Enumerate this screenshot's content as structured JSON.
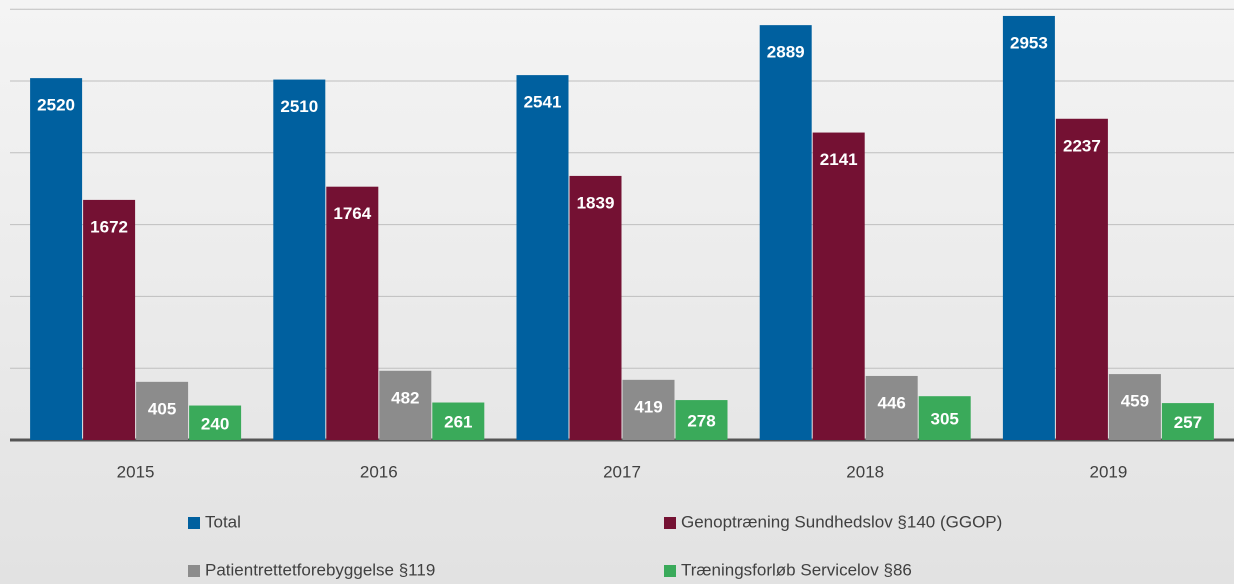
{
  "chart_data": {
    "type": "bar",
    "categories": [
      "2015",
      "2016",
      "2017",
      "2018",
      "2019"
    ],
    "series": [
      {
        "name": "Total",
        "color": "#00609f",
        "values": [
          2520,
          2510,
          2541,
          2889,
          2953
        ]
      },
      {
        "name": "Genoptræning Sundhedslov §140 (GGOP)",
        "color": "#741133",
        "values": [
          1672,
          1764,
          1839,
          2141,
          2237
        ]
      },
      {
        "name": "Patientrettetforebyggelse §119",
        "color": "#8c8c8c",
        "values": [
          405,
          482,
          419,
          446,
          459
        ]
      },
      {
        "name": "Træningsforløb Servicelov §86",
        "color": "#3aaa5a",
        "values": [
          240,
          261,
          278,
          305,
          257
        ]
      }
    ],
    "ylim": [
      0,
      3000
    ],
    "yticks": [
      0,
      500,
      1000,
      1500,
      2000,
      2500,
      3000
    ],
    "grid": true,
    "legend": "bottom"
  }
}
